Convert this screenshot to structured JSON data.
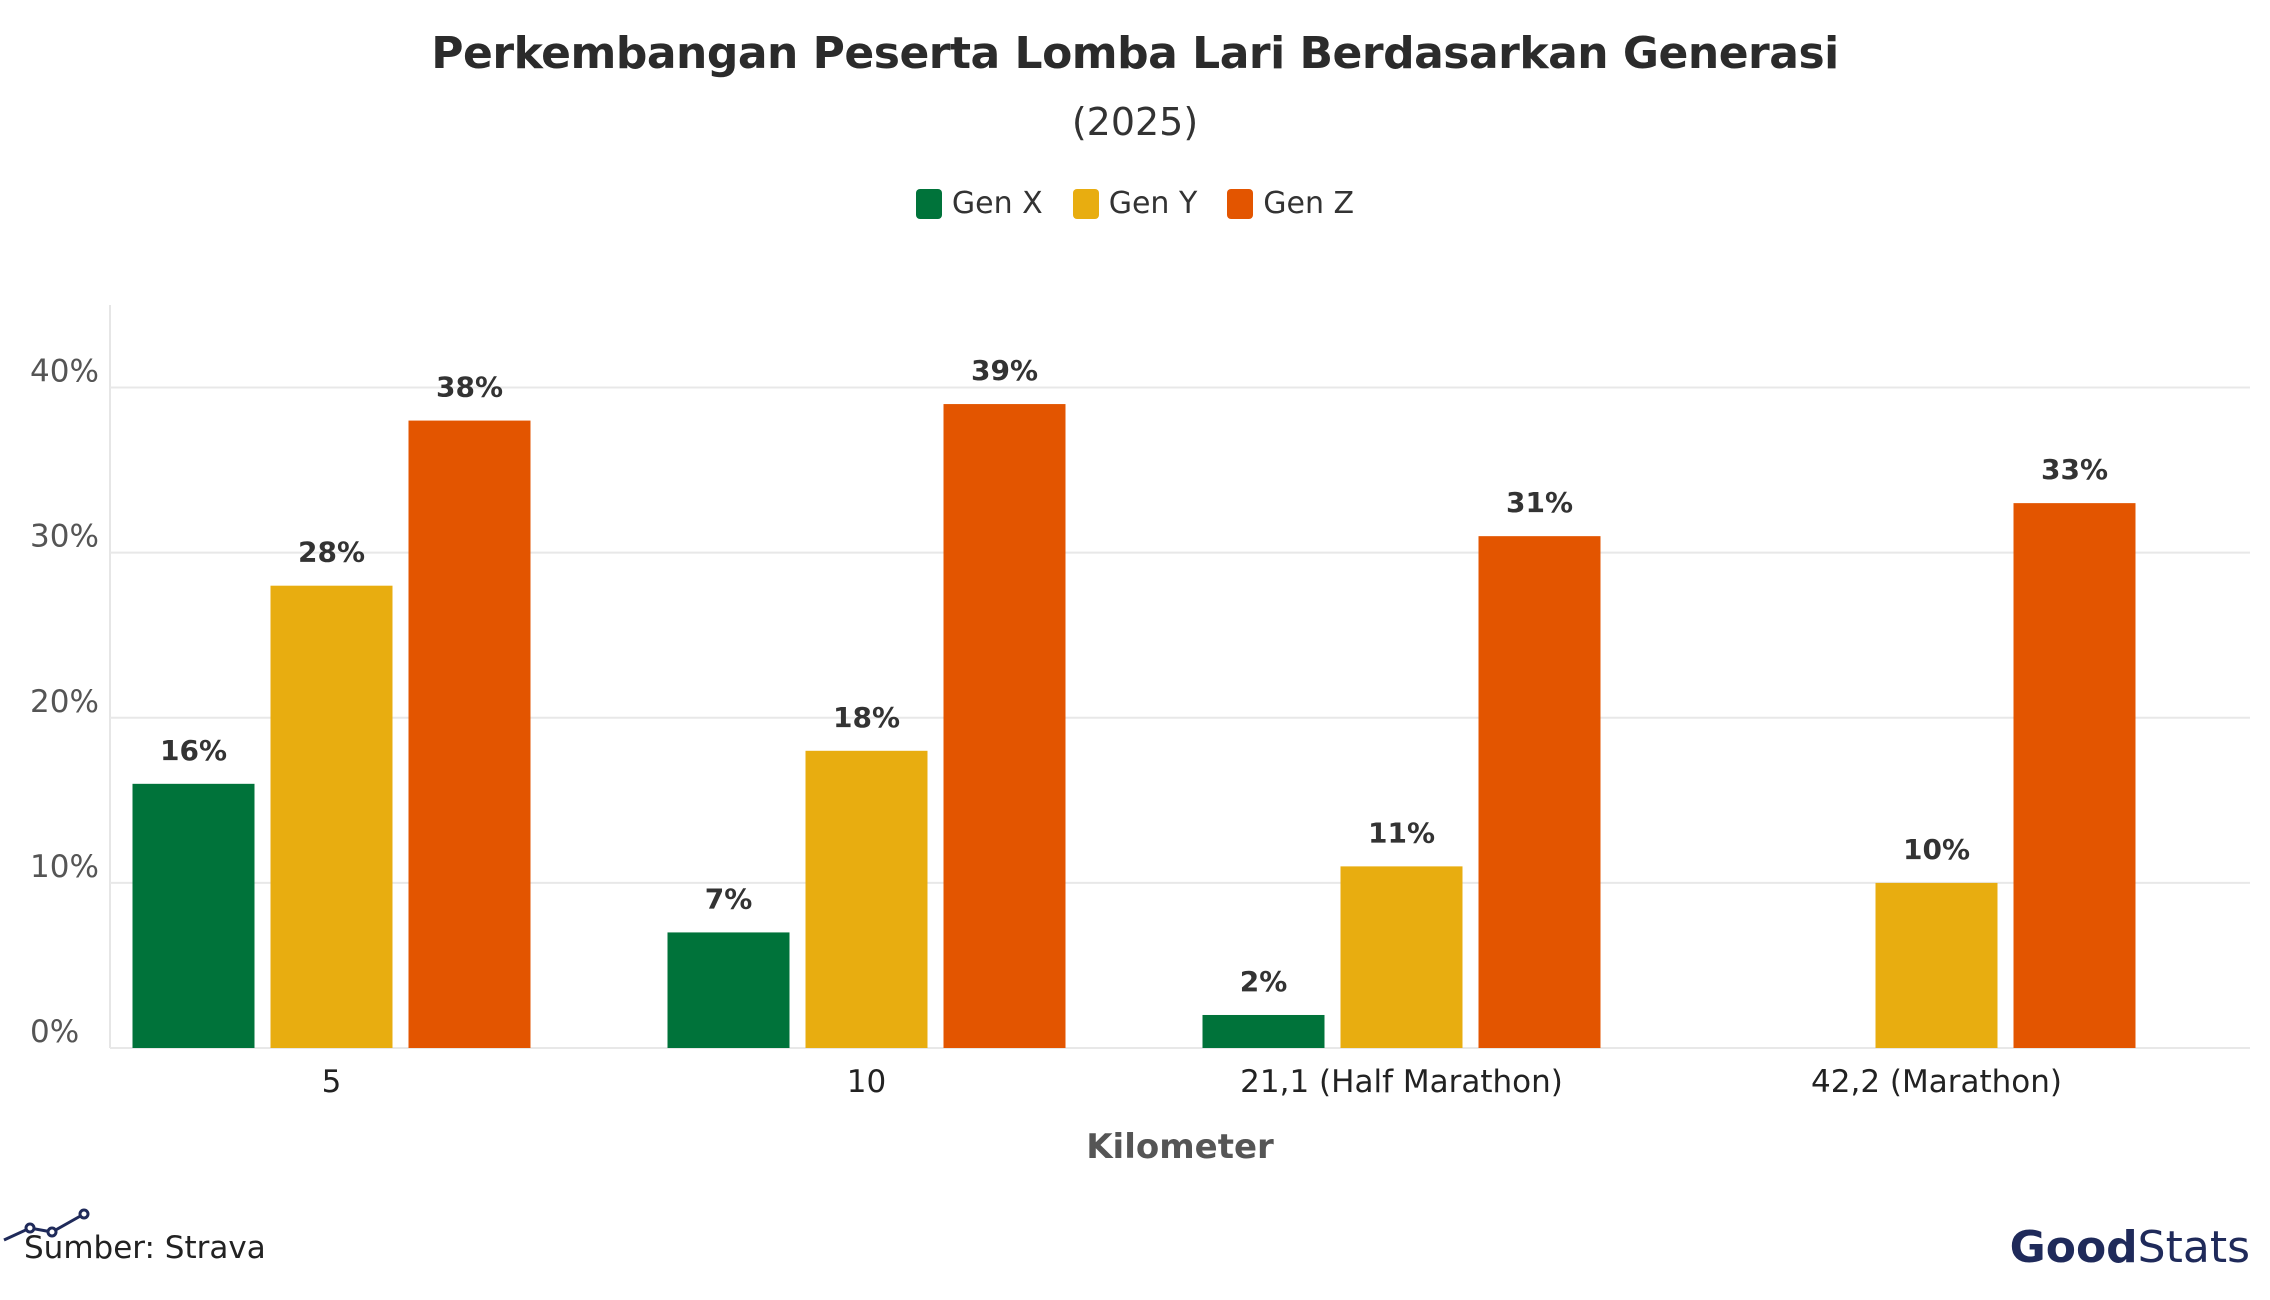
{
  "chart_data": {
    "type": "bar",
    "title": "Perkembangan Peserta Lomba Lari Berdasarkan Generasi",
    "subtitle": "(2025)",
    "xlabel": "Kilometer",
    "ylabel": "",
    "categories": [
      "5",
      "10",
      "21,1 (Half Marathon)",
      "42,2 (Marathon)"
    ],
    "series": [
      {
        "name": "Gen X",
        "color": "#00733a",
        "values": [
          16,
          7,
          2,
          null
        ],
        "labels": [
          "16%",
          "7%",
          "2%",
          ""
        ]
      },
      {
        "name": "Gen Y",
        "color": "#e8ad10",
        "values": [
          28,
          18,
          11,
          10
        ],
        "labels": [
          "28%",
          "18%",
          "11%",
          "10%"
        ]
      },
      {
        "name": "Gen Z",
        "color": "#e35500",
        "values": [
          38,
          39,
          31,
          33
        ],
        "labels": [
          "38%",
          "39%",
          "31%",
          "33%"
        ]
      }
    ],
    "ylim": [
      0,
      45
    ],
    "yticks": [
      0,
      10,
      20,
      30,
      40
    ],
    "ytick_labels": [
      "0%",
      "10%",
      "20%",
      "30%",
      "40%"
    ],
    "grid": true,
    "legend": "top-center"
  },
  "footer": {
    "source": "Sumber: Strava",
    "logo_part1": "Good",
    "logo_part2": "Stats",
    "logo_color": "#1f2a5a"
  }
}
